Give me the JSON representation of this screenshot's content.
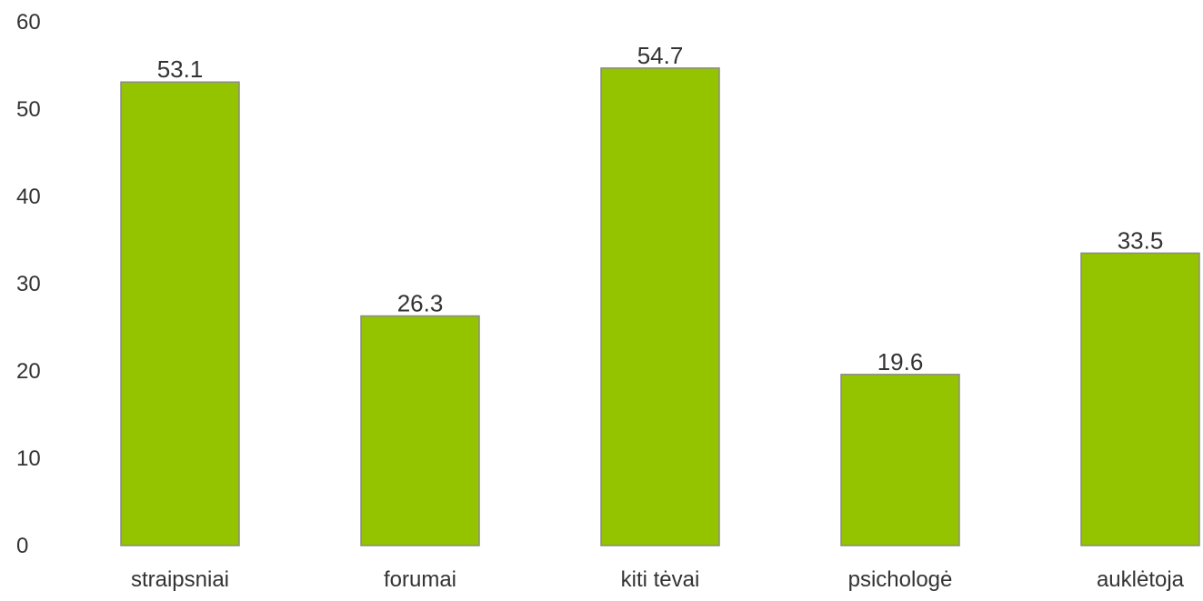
{
  "chart_data": {
    "type": "bar",
    "title": "",
    "xlabel": "",
    "ylabel": "",
    "categories": [
      "straipsniai",
      "forumai",
      "kiti tėvai",
      "psichologė",
      "auklėtoja"
    ],
    "values": [
      53.1,
      26.3,
      54.7,
      19.6,
      33.5
    ],
    "value_labels": [
      "53.1",
      "26.3",
      "54.7",
      "19.6",
      "33.5"
    ],
    "ylim": [
      0,
      60
    ],
    "yticks": [
      0,
      10,
      20,
      30,
      40,
      50,
      60
    ],
    "ytick_labels": [
      "0",
      "10",
      "20",
      "30",
      "40",
      "50",
      "60"
    ],
    "grid": false,
    "legend": "none",
    "bar_color": "#94c400",
    "bar_edge_color": "#8a8a8a"
  }
}
